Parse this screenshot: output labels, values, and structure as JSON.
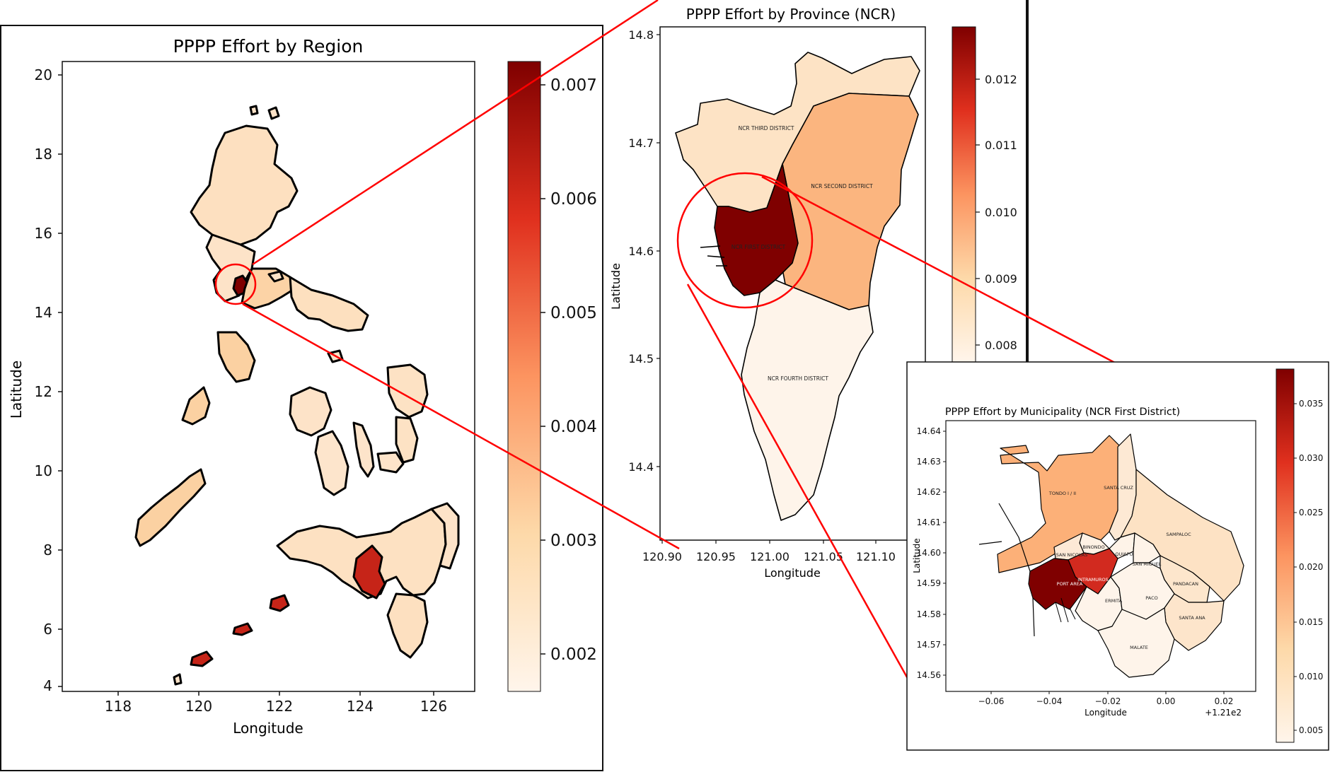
{
  "figure_title": "",
  "panels": {
    "region": {
      "title": "PPPP Effort by Region",
      "xlabel": "Longitude",
      "ylabel": "Latitude",
      "xticks": [
        "118",
        "120",
        "122",
        "124",
        "126"
      ],
      "yticks": [
        "4",
        "6",
        "8",
        "10",
        "12",
        "14",
        "16",
        "18",
        "20"
      ],
      "colorbar_ticks": [
        "0.002",
        "0.003",
        "0.004",
        "0.005",
        "0.006",
        "0.007"
      ]
    },
    "province": {
      "title": "PPPP Effort by Province (NCR)",
      "xlabel": "Longitude",
      "ylabel": "Latitude",
      "xticks": [
        "120.90",
        "120.95",
        "121.00",
        "121.05",
        "121.10"
      ],
      "yticks": [
        "14.4",
        "14.5",
        "14.6",
        "14.7",
        "14.8"
      ],
      "colorbar_ticks": [
        "0.008",
        "0.009",
        "0.010",
        "0.011",
        "0.012"
      ],
      "district_labels": [
        "NCR THIRD DISTRICT",
        "NCR SECOND DISTRICT",
        "NCR FIRST DISTRICT",
        "NCR FOURTH DISTRICT"
      ]
    },
    "municipality": {
      "title": "PPPP Effort by Municipality (NCR First District)",
      "xlabel": "Longitude",
      "ylabel": "Latitude",
      "xticks": [
        "−0.06",
        "−0.04",
        "−0.02",
        "0.00",
        "0.02"
      ],
      "x_offset_label": "+1.21e2",
      "yticks": [
        "14.56",
        "14.57",
        "14.58",
        "14.59",
        "14.60",
        "14.61",
        "14.62",
        "14.63",
        "14.64"
      ],
      "colorbar_ticks": [
        "0.005",
        "0.010",
        "0.015",
        "0.020",
        "0.025",
        "0.030",
        "0.035"
      ],
      "place_labels": [
        "TONDO I / II",
        "SANTA CRUZ",
        "SAMPALOC",
        "BINONDO",
        "SAN NICOLAS",
        "QUIAPO",
        "SAN MIGUEL",
        "INTRAMUROS",
        "PORT AREA",
        "PANDACAN",
        "ERMITA",
        "PACO",
        "SANTA ANA",
        "MALATE"
      ]
    }
  },
  "colors": {
    "accent_line": "#ff0000",
    "cmap_low": "#fff5eb",
    "cmap_high": "#7f0000"
  }
}
